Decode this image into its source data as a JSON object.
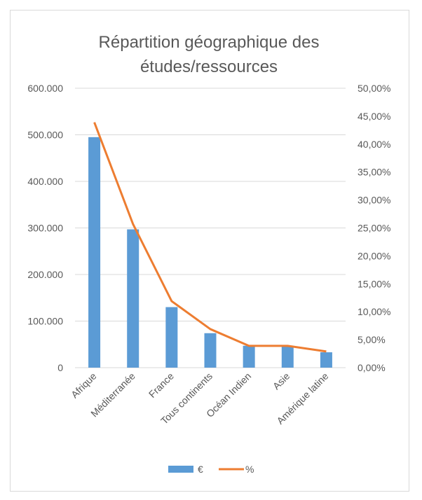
{
  "chart_data": {
    "type": "bar+line",
    "title_lines": [
      "Répartition géographique des",
      "études/ressources"
    ],
    "categories": [
      "Afrique",
      "Méditerranée",
      "France",
      "Tous continents",
      "Océan Indien",
      "Asie",
      "Amérique latine"
    ],
    "series": [
      {
        "name": "€",
        "type": "bar",
        "axis": "left",
        "color": "#5b9bd5",
        "values": [
          495000,
          297000,
          130000,
          74000,
          47000,
          47000,
          33000
        ]
      },
      {
        "name": "%",
        "type": "line",
        "axis": "right",
        "color": "#ed7d31",
        "values": [
          43.9,
          25.7,
          11.9,
          6.9,
          3.9,
          3.9,
          2.9
        ]
      }
    ],
    "y_left": {
      "min": 0,
      "max": 600000,
      "ticks": [
        "0",
        "100.000",
        "200.000",
        "300.000",
        "400.000",
        "500.000",
        "600.000"
      ]
    },
    "y_right": {
      "min": 0,
      "max": 50,
      "ticks": [
        "0,00%",
        "5,00%",
        "10,00%",
        "15,00%",
        "20,00%",
        "25,00%",
        "30,00%",
        "35,00%",
        "40,00%",
        "45,00%",
        "50,00%"
      ]
    },
    "grid": true,
    "legend_position": "bottom",
    "legend": [
      "€",
      "%"
    ]
  }
}
